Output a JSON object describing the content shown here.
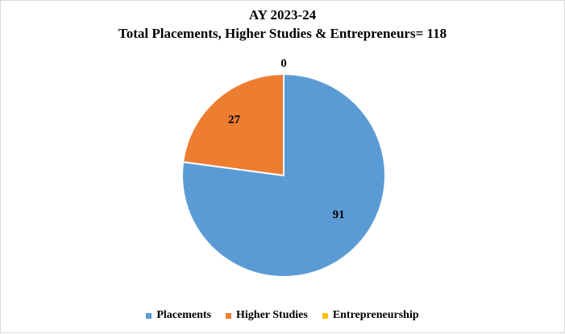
{
  "chart_data": {
    "type": "pie",
    "title": "AY 2023-24",
    "subtitle": "Total Placements, Higher Studies & Entrepreneurs= 118",
    "categories": [
      "Placements",
      "Higher Studies",
      "Entrepreneurship"
    ],
    "values": [
      91,
      27,
      0
    ],
    "colors": [
      "#5B9BD5",
      "#ED7D31",
      "#FFC000"
    ],
    "legend": "bottom"
  }
}
